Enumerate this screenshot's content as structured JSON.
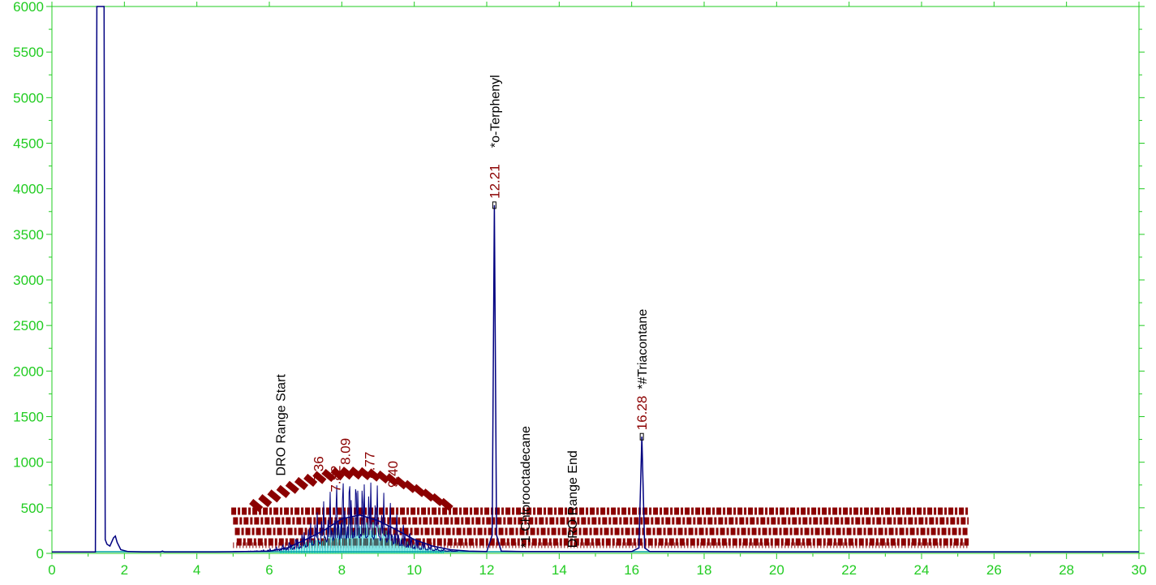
{
  "colors": {
    "axis": "#22cc22",
    "trace": "#000080",
    "fill": "#00c8c8",
    "rt_label": "#8b0000",
    "compound_label": "#000000",
    "baseline": "#00a0a0"
  },
  "chart_data": {
    "type": "line",
    "title": "",
    "xlabel": "",
    "ylabel": "",
    "xlim": [
      0,
      30
    ],
    "ylim": [
      0,
      6000
    ],
    "x_ticks": [
      "0",
      "2",
      "4",
      "6",
      "8",
      "10",
      "12",
      "14",
      "16",
      "18",
      "20",
      "22",
      "24",
      "26",
      "28",
      "30"
    ],
    "y_ticks": [
      "0",
      "500",
      "1000",
      "1500",
      "2000",
      "2500",
      "3000",
      "3500",
      "4000",
      "4500",
      "5000",
      "5500",
      "6000"
    ],
    "series": [
      {
        "x": [
          0,
          1.0,
          1.2,
          1.24,
          1.27,
          1.33,
          1.4,
          1.44,
          1.47,
          1.52,
          1.6,
          1.7,
          1.75,
          1.8,
          1.9,
          2.1,
          2.5,
          3.0,
          3.05,
          3.1,
          3.5,
          4.5,
          5.0,
          6.0,
          6.5,
          7.0,
          7.5,
          8.0,
          8.5,
          9.0,
          9.5,
          10.0,
          10.5,
          11.0,
          11.5,
          12.0,
          12.15,
          12.21,
          12.27,
          12.4,
          13.0,
          14.0,
          15.0,
          16.0,
          16.2,
          16.28,
          16.36,
          16.5,
          17.0,
          20.0,
          25.0,
          30.0
        ],
        "y": [
          15,
          15,
          15,
          6000,
          6000,
          6000,
          6000,
          6000,
          150,
          100,
          80,
          170,
          190,
          120,
          40,
          20,
          15,
          15,
          25,
          15,
          15,
          15,
          18,
          25,
          60,
          150,
          250,
          380,
          420,
          360,
          260,
          150,
          80,
          40,
          25,
          20,
          200,
          3820,
          200,
          25,
          20,
          20,
          20,
          20,
          60,
          1280,
          60,
          20,
          20,
          15,
          15,
          15
        ]
      }
    ],
    "peak_labels": [
      {
        "x": 12.21,
        "y": 3820,
        "text": "12.21"
      },
      {
        "x": 16.28,
        "y": 1280,
        "text": "16.28"
      },
      {
        "x": 8.09,
        "y": 900,
        "text": "8.09"
      },
      {
        "x": 8.77,
        "y": 750,
        "text": "8.77"
      },
      {
        "x": 9.4,
        "y": 650,
        "text": "9.40"
      },
      {
        "x": 7.36,
        "y": 700,
        "text": "7.36"
      },
      {
        "x": 7.82,
        "y": 600,
        "text": "7.82"
      }
    ],
    "compound_labels": [
      {
        "x": 6.3,
        "y": 850,
        "text": "DRO Range Start"
      },
      {
        "x": 12.21,
        "y": 4450,
        "text": "*o-Terphenyl"
      },
      {
        "x": 13.05,
        "y": 60,
        "text": "*1-Chlorooctadecane"
      },
      {
        "x": 14.35,
        "y": 60,
        "text": "DRO Range End"
      },
      {
        "x": 16.28,
        "y": 1800,
        "text": "*#Triacontane"
      }
    ]
  }
}
